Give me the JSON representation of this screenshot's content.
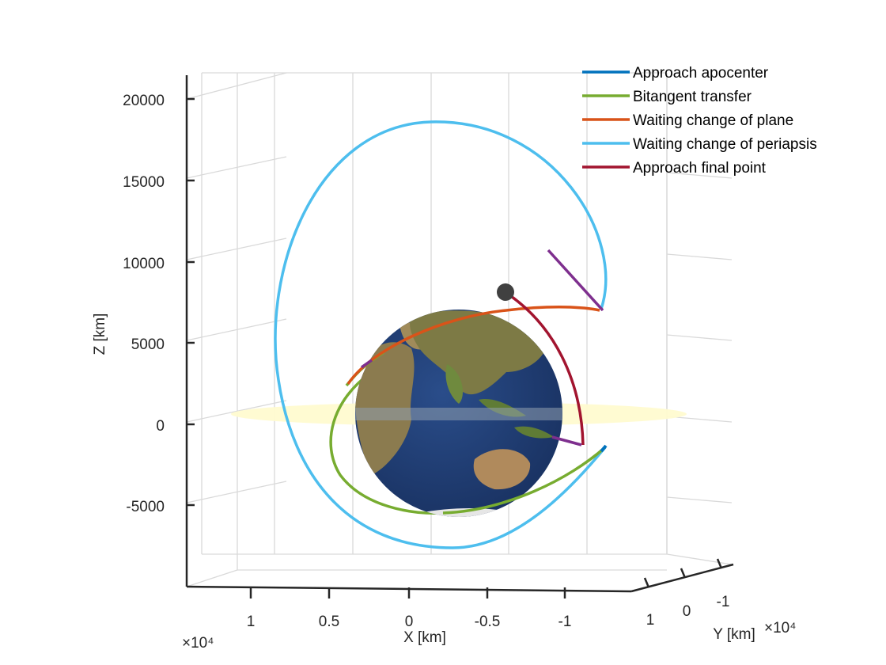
{
  "chart_data": {
    "type": "line",
    "title": "",
    "xlabel": "X [km]",
    "ylabel": "Y [km]",
    "zlabel": "Z [km]",
    "x_exponent": "×10⁴",
    "y_exponent": "×10⁴",
    "x_ticks": [
      "1",
      "0.5",
      "0",
      "-0.5",
      "-1"
    ],
    "y_ticks": [
      "1",
      "0",
      "-1"
    ],
    "z_ticks": [
      "20000",
      "15000",
      "10000",
      "5000",
      "0",
      "-5000"
    ],
    "zlim": [
      -10000,
      22000
    ],
    "grid": true,
    "legend_position": "top-right",
    "series": [
      {
        "name": "Approach apocenter",
        "color": "#0072BD"
      },
      {
        "name": "Bitangent transfer",
        "color": "#77AC30"
      },
      {
        "name": "Waiting change of plane",
        "color": "#D95319"
      },
      {
        "name": "Waiting change of periapsis",
        "color": "#4DBEEE"
      },
      {
        "name": "Approach final point",
        "color": "#A2142F"
      }
    ],
    "colors": {
      "maneuver_marker": "#7E2F8E",
      "target_point": "#404040",
      "equatorial_plane": "#FFFFC8",
      "earth_ocean": "#1F3C73",
      "earth_land": "#8A7A4E"
    }
  }
}
